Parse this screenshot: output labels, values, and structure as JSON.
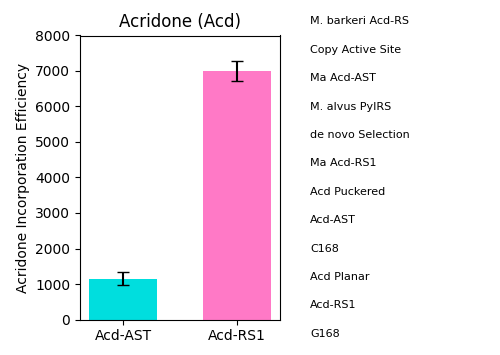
{
  "chart_data": {
    "type": "bar",
    "title": "Acridone (Acd)",
    "ylabel": "Acridone Incorporation Efficiency",
    "categories": [
      "Acd-AST",
      "Acd-RS1"
    ],
    "values": [
      1150,
      7000
    ],
    "errors": [
      190,
      280
    ],
    "colors": [
      "#00DEDE",
      "#FF79C6"
    ],
    "ylim": [
      0,
      8000
    ],
    "yticks": [
      0,
      1000,
      2000,
      3000,
      4000,
      5000,
      6000,
      7000,
      8000
    ],
    "annotations": [
      "M. barkeri Acd-RS",
      "Copy Active Site",
      "Ma Acd-AST",
      "M. alvus PyIRS",
      "de novo Selection",
      "Ma Acd-RS1",
      "Acd Puckered",
      "Acd-AST",
      "C168",
      "Acd Planar",
      "Acd-RS1",
      "G168"
    ]
  }
}
